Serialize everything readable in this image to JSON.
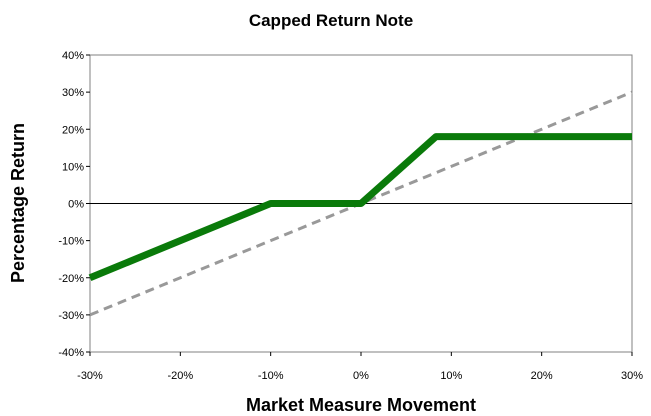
{
  "chart_data": {
    "type": "line",
    "title": "Capped Return Note",
    "xlabel": "Market Measure Movement",
    "ylabel": "Percentage Return",
    "xlim": [
      -30,
      30
    ],
    "ylim": [
      -40,
      40
    ],
    "x_ticks": [
      "-30%",
      "-20%",
      "-10%",
      "0%",
      "10%",
      "20%",
      "30%"
    ],
    "y_ticks": [
      "40%",
      "30%",
      "20%",
      "10%",
      "0%",
      "-10%",
      "-20%",
      "-30%",
      "-40%"
    ],
    "grid": false,
    "legend": "none",
    "series": [
      {
        "style": "solid",
        "color": "#0a7a0a",
        "x": [
          -30,
          -10,
          0,
          8.3,
          30
        ],
        "y": [
          -20,
          0,
          0,
          18,
          18
        ]
      },
      {
        "style": "dashed",
        "color": "#999999",
        "x": [
          -30,
          30
        ],
        "y": [
          -30,
          30
        ]
      }
    ]
  }
}
